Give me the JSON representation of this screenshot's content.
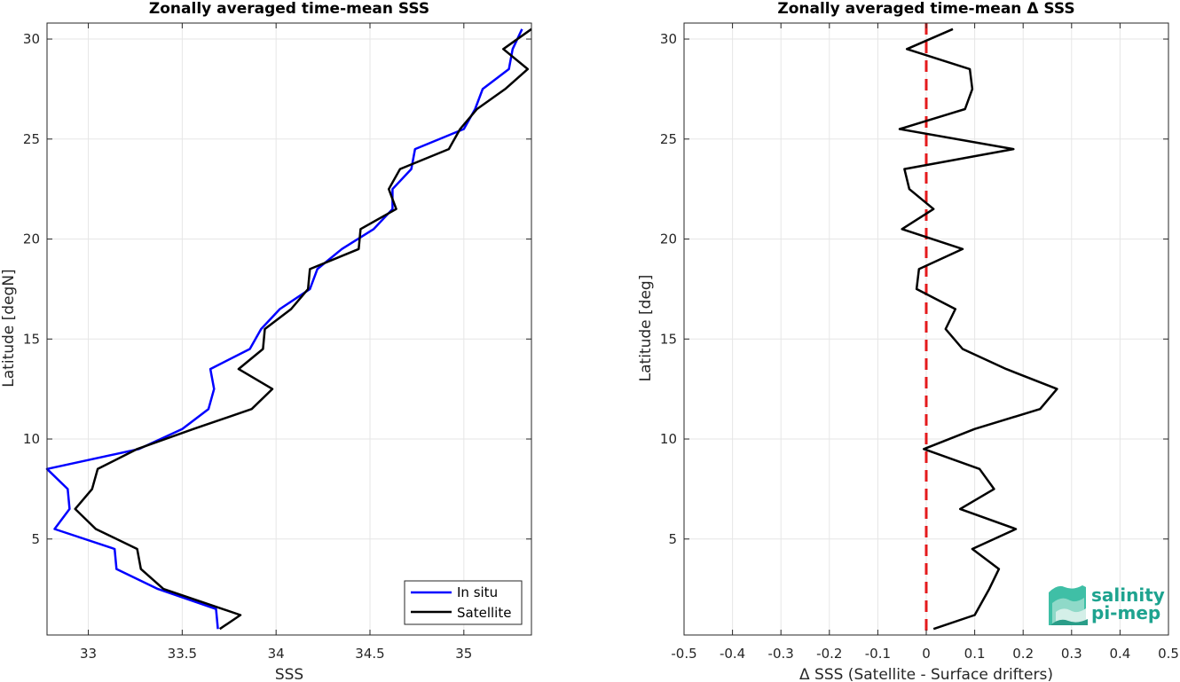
{
  "chart_data": [
    {
      "type": "line",
      "title": "Zonally averaged time-mean SSS",
      "xlabel": "SSS",
      "ylabel": "Latitude [degN]",
      "xlim": [
        32.78,
        35.36
      ],
      "ylim": [
        0.2,
        30.8
      ],
      "xticks": [
        33,
        33.5,
        34,
        34.5,
        35
      ],
      "xtick_labels": [
        "33",
        "33.5",
        "34",
        "34.5",
        "35"
      ],
      "yticks": [
        5,
        10,
        15,
        20,
        25,
        30
      ],
      "ytick_labels": [
        "5",
        "10",
        "15",
        "20",
        "25",
        "30"
      ],
      "grid": true,
      "legend_position": "bottom-right",
      "series": [
        {
          "name": "In situ",
          "color": "#0000ff",
          "points": [
            [
              33.69,
              0.5
            ],
            [
              33.68,
              1.5
            ],
            [
              33.37,
              2.5
            ],
            [
              33.15,
              3.5
            ],
            [
              33.14,
              4.5
            ],
            [
              32.82,
              5.5
            ],
            [
              32.9,
              6.5
            ],
            [
              32.89,
              7.5
            ],
            [
              32.78,
              8.5
            ],
            [
              33.27,
              9.5
            ],
            [
              33.5,
              10.5
            ],
            [
              33.64,
              11.5
            ],
            [
              33.67,
              12.5
            ],
            [
              33.65,
              13.5
            ],
            [
              33.86,
              14.5
            ],
            [
              33.92,
              15.5
            ],
            [
              34.02,
              16.5
            ],
            [
              34.18,
              17.5
            ],
            [
              34.22,
              18.5
            ],
            [
              34.35,
              19.5
            ],
            [
              34.52,
              20.5
            ],
            [
              34.62,
              21.5
            ],
            [
              34.62,
              22.5
            ],
            [
              34.72,
              23.5
            ],
            [
              34.74,
              24.5
            ],
            [
              35.0,
              25.5
            ],
            [
              35.06,
              26.5
            ],
            [
              35.1,
              27.5
            ],
            [
              35.24,
              28.5
            ],
            [
              35.26,
              29.5
            ],
            [
              35.31,
              30.5
            ]
          ]
        },
        {
          "name": "Satellite",
          "color": "#000000",
          "points": [
            [
              33.7,
              0.5
            ],
            [
              33.81,
              1.2
            ],
            [
              33.4,
              2.5
            ],
            [
              33.28,
              3.5
            ],
            [
              33.26,
              4.5
            ],
            [
              33.04,
              5.5
            ],
            [
              32.93,
              6.5
            ],
            [
              33.02,
              7.5
            ],
            [
              33.05,
              8.5
            ],
            [
              33.26,
              9.5
            ],
            [
              33.56,
              10.5
            ],
            [
              33.87,
              11.5
            ],
            [
              33.98,
              12.5
            ],
            [
              33.8,
              13.5
            ],
            [
              33.93,
              14.5
            ],
            [
              33.94,
              15.5
            ],
            [
              34.08,
              16.5
            ],
            [
              34.17,
              17.5
            ],
            [
              34.18,
              18.5
            ],
            [
              34.44,
              19.5
            ],
            [
              34.45,
              20.5
            ],
            [
              34.64,
              21.5
            ],
            [
              34.6,
              22.5
            ],
            [
              34.66,
              23.5
            ],
            [
              34.92,
              24.5
            ],
            [
              34.98,
              25.5
            ],
            [
              35.07,
              26.5
            ],
            [
              35.22,
              27.5
            ],
            [
              35.34,
              28.5
            ],
            [
              35.21,
              29.5
            ],
            [
              35.36,
              30.5
            ]
          ]
        }
      ]
    },
    {
      "type": "line",
      "title": "Zonally averaged time-mean Δ SSS",
      "xlabel": "Δ SSS (Satellite - Surface drifters)",
      "ylabel": "Latitude [deg]",
      "xlim": [
        -0.5,
        0.5
      ],
      "ylim": [
        0.2,
        30.8
      ],
      "xticks": [
        -0.5,
        -0.4,
        -0.3,
        -0.2,
        -0.1,
        0,
        0.1,
        0.2,
        0.3,
        0.4,
        0.5
      ],
      "xtick_labels": [
        "-0.5",
        "-0.4",
        "-0.3",
        "-0.2",
        "-0.1",
        "0",
        "0.1",
        "0.2",
        "0.3",
        "0.4",
        "0.5"
      ],
      "yticks": [
        5,
        10,
        15,
        20,
        25,
        30
      ],
      "ytick_labels": [
        "5",
        "10",
        "15",
        "20",
        "25",
        "30"
      ],
      "grid": true,
      "reference_line": {
        "x": 0,
        "color": "#e41a1c",
        "style": "dashed"
      },
      "series": [
        {
          "color": "#000000",
          "points": [
            [
              0.015,
              0.5
            ],
            [
              0.1,
              1.2
            ],
            [
              0.13,
              2.5
            ],
            [
              0.15,
              3.5
            ],
            [
              0.095,
              4.5
            ],
            [
              0.185,
              5.5
            ],
            [
              0.07,
              6.5
            ],
            [
              0.14,
              7.5
            ],
            [
              0.11,
              8.5
            ],
            [
              -0.005,
              9.5
            ],
            [
              0.1,
              10.5
            ],
            [
              0.235,
              11.5
            ],
            [
              0.27,
              12.5
            ],
            [
              0.165,
              13.5
            ],
            [
              0.075,
              14.5
            ],
            [
              0.04,
              15.5
            ],
            [
              0.06,
              16.5
            ],
            [
              -0.02,
              17.5
            ],
            [
              -0.015,
              18.5
            ],
            [
              0.075,
              19.5
            ],
            [
              -0.05,
              20.5
            ],
            [
              0.015,
              21.5
            ],
            [
              -0.035,
              22.5
            ],
            [
              -0.045,
              23.5
            ],
            [
              0.18,
              24.5
            ],
            [
              -0.055,
              25.5
            ],
            [
              0.08,
              26.5
            ],
            [
              0.095,
              27.5
            ],
            [
              0.09,
              28.5
            ],
            [
              -0.04,
              29.5
            ],
            [
              0.055,
              30.5
            ]
          ]
        }
      ]
    }
  ],
  "legend": {
    "entries": [
      {
        "label": "In situ",
        "color": "#0000ff"
      },
      {
        "label": "Satellite",
        "color": "#000000"
      }
    ]
  },
  "logo": {
    "line1": "salinity",
    "line2": "pi-mep",
    "color": "#1ea38f"
  }
}
